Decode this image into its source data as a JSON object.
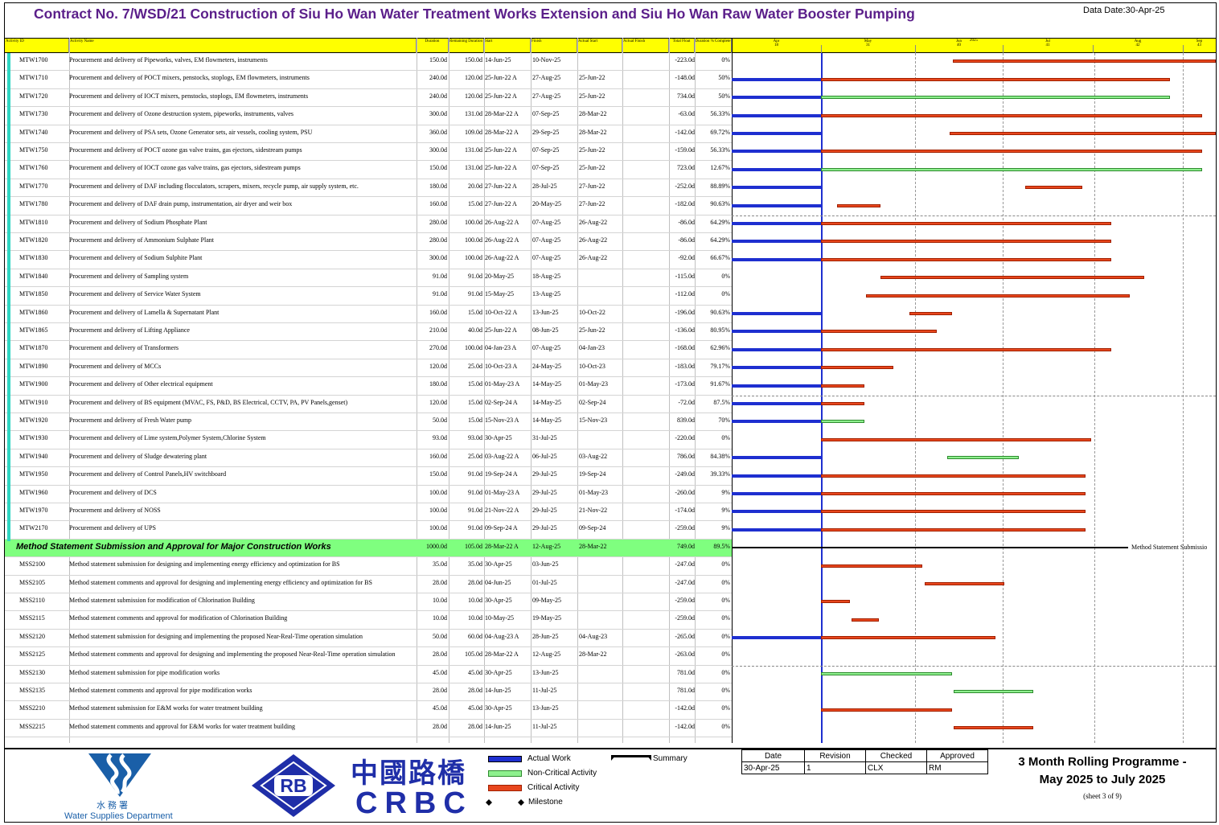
{
  "header": {
    "title": "Contract No. 7/WSD/21 Construction of Siu Ho Wan Water Treatment Works Extension and Siu Ho Wan Raw Water Booster Pumping",
    "data_date": "Data Date:30-Apr-25"
  },
  "columns": {
    "id": "Activity ID",
    "name": "Activity Name",
    "dur": "Duration",
    "rem": "Remaining Duration",
    "start": "Start",
    "finish": "Finish",
    "astart": "Actual Start",
    "afinish": "Actual Finish",
    "tf": "Total Float",
    "pct": "Duration % Complete"
  },
  "timescale": {
    "year": "2025",
    "months": [
      {
        "m": "Apr",
        "w": "18"
      },
      {
        "m": "May",
        "w": "31"
      },
      {
        "m": "Jun",
        "w": "40"
      },
      {
        "m": "Jul",
        "w": "41"
      },
      {
        "m": "Aug",
        "w": "42"
      },
      {
        "m": "Sep",
        "w": "43"
      }
    ]
  },
  "rows": [
    {
      "id": "MTW1700",
      "name": "Procurement and delivery of Pipeworks, valves, EM flowmeters, instruments",
      "dur": "150.0d",
      "rem": "150.0d",
      "start": "14-Jun-25",
      "finish": "10-Nov-25",
      "astart": "",
      "tf": "-223.0d",
      "pct": "0%",
      "act": null,
      "bar": [
        0.456,
        1.0
      ],
      "kind": "crit"
    },
    {
      "id": "MTW1710",
      "name": "Procurement and delivery of POCT mixers, penstocks, stoplogs, EM flowmeters, instruments",
      "dur": "240.0d",
      "rem": "120.0d",
      "start": "25-Jun-22 A",
      "finish": "27-Aug-25",
      "astart": "25-Jun-22",
      "tf": "-148.0d",
      "pct": "50%",
      "act": [
        0,
        0.185
      ],
      "bar": [
        0.185,
        0.906
      ],
      "kind": "crit"
    },
    {
      "id": "MTW1720",
      "name": "Procurement and delivery of IOCT mixers, penstocks, stoplogs, EM flowmeters, instruments",
      "dur": "240.0d",
      "rem": "120.0d",
      "start": "25-Jun-22 A",
      "finish": "27-Aug-25",
      "astart": "25-Jun-22",
      "tf": "734.0d",
      "pct": "50%",
      "act": [
        0,
        0.185
      ],
      "bar": [
        0.185,
        0.906
      ],
      "kind": "nc"
    },
    {
      "id": "MTW1730",
      "name": "Procurement and delivery of Ozone destruction system, pipeworks, instruments, valves",
      "dur": "300.0d",
      "rem": "131.0d",
      "start": "28-Mar-22 A",
      "finish": "07-Sep-25",
      "astart": "28-Mar-22",
      "tf": "-63.0d",
      "pct": "56.33%",
      "act": [
        0,
        0.185
      ],
      "bar": [
        0.185,
        0.973
      ],
      "kind": "crit"
    },
    {
      "id": "MTW1740",
      "name": "Procurement and delivery of PSA sets, Ozone Generator sets, air vessels, cooling system, PSU",
      "dur": "360.0d",
      "rem": "109.0d",
      "start": "28-Mar-22 A",
      "finish": "29-Sep-25",
      "astart": "28-Mar-22",
      "tf": "-142.0d",
      "pct": "69.72%",
      "act": [
        0,
        0.185
      ],
      "bar": [
        0.45,
        1.0
      ],
      "kind": "crit"
    },
    {
      "id": "MTW1750",
      "name": "Procurement and delivery of POCT ozone gas valve trains, gas ejectors, sidestream pumps",
      "dur": "300.0d",
      "rem": "131.0d",
      "start": "25-Jun-22 A",
      "finish": "07-Sep-25",
      "astart": "25-Jun-22",
      "tf": "-159.0d",
      "pct": "56.33%",
      "act": [
        0,
        0.185
      ],
      "bar": [
        0.185,
        0.973
      ],
      "kind": "crit"
    },
    {
      "id": "MTW1760",
      "name": "Procurement and delivery of IOCT ozone gas valve trains, gas ejectors, sidestream pumps",
      "dur": "150.0d",
      "rem": "131.0d",
      "start": "25-Jun-22 A",
      "finish": "07-Sep-25",
      "astart": "25-Jun-22",
      "tf": "723.0d",
      "pct": "12.67%",
      "act": [
        0,
        0.185
      ],
      "bar": [
        0.185,
        0.973
      ],
      "kind": "nc"
    },
    {
      "id": "MTW1770",
      "name": "Procurement and delivery of DAF including flocculators, scrapers, mixers, recycle pump, air supply system, etc.",
      "dur": "180.0d",
      "rem": "20.0d",
      "start": "27-Jun-22 A",
      "finish": "28-Jul-25",
      "astart": "27-Jun-22",
      "tf": "-252.0d",
      "pct": "88.89%",
      "act": [
        0,
        0.185
      ],
      "bar": [
        0.606,
        0.724
      ],
      "kind": "crit"
    },
    {
      "id": "MTW1780",
      "name": "Procurement and delivery of DAF drain pump, instrumentation, air dryer and weir box",
      "dur": "160.0d",
      "rem": "15.0d",
      "start": "27-Jun-22 A",
      "finish": "20-May-25",
      "astart": "27-Jun-22",
      "tf": "-182.0d",
      "pct": "90.63%",
      "act": [
        0,
        0.185
      ],
      "bar": [
        0.218,
        0.307
      ],
      "kind": "crit"
    },
    {
      "id": "MTW1810",
      "name": "Procurement and delivery of Sodium Phosphate Plant",
      "dur": "280.0d",
      "rem": "100.0d",
      "start": "26-Aug-22 A",
      "finish": "07-Aug-25",
      "astart": "26-Aug-22",
      "tf": "-86.0d",
      "pct": "64.29%",
      "act": [
        0,
        0.185
      ],
      "bar": [
        0.185,
        0.785
      ],
      "kind": "crit"
    },
    {
      "id": "MTW1820",
      "name": "Procurement and delivery of Ammonium Sulphate Plant",
      "dur": "280.0d",
      "rem": "100.0d",
      "start": "26-Aug-22 A",
      "finish": "07-Aug-25",
      "astart": "26-Aug-22",
      "tf": "-86.0d",
      "pct": "64.29%",
      "act": [
        0,
        0.185
      ],
      "bar": [
        0.185,
        0.785
      ],
      "kind": "crit"
    },
    {
      "id": "MTW1830",
      "name": "Procurement and delivery of Sodium Sulphite Plant",
      "dur": "300.0d",
      "rem": "100.0d",
      "start": "26-Aug-22 A",
      "finish": "07-Aug-25",
      "astart": "26-Aug-22",
      "tf": "-92.0d",
      "pct": "66.67%",
      "act": [
        0,
        0.185
      ],
      "bar": [
        0.185,
        0.785
      ],
      "kind": "crit"
    },
    {
      "id": "MTW1840",
      "name": "Procurement and delivery of Sampling system",
      "dur": "91.0d",
      "rem": "91.0d",
      "start": "20-May-25",
      "finish": "18-Aug-25",
      "astart": "",
      "tf": "-115.0d",
      "pct": "0%",
      "act": null,
      "bar": [
        0.307,
        0.852
      ],
      "kind": "crit"
    },
    {
      "id": "MTW1850",
      "name": "Procurement and delivery of Service Water System",
      "dur": "91.0d",
      "rem": "91.0d",
      "start": "15-May-25",
      "finish": "13-Aug-25",
      "astart": "",
      "tf": "-112.0d",
      "pct": "0%",
      "act": null,
      "bar": [
        0.277,
        0.822
      ],
      "kind": "crit"
    },
    {
      "id": "MTW1860",
      "name": "Procurement and delivery of Lamella & Supernatant Plant",
      "dur": "160.0d",
      "rem": "15.0d",
      "start": "10-Oct-22 A",
      "finish": "13-Jun-25",
      "astart": "10-Oct-22",
      "tf": "-196.0d",
      "pct": "90.63%",
      "act": [
        0,
        0.185
      ],
      "bar": [
        0.367,
        0.455
      ],
      "kind": "crit"
    },
    {
      "id": "MTW1865",
      "name": "Procurement and delivery of Lifting Appliance",
      "dur": "210.0d",
      "rem": "40.0d",
      "start": "25-Jun-22 A",
      "finish": "08-Jun-25",
      "astart": "25-Jun-22",
      "tf": "-136.0d",
      "pct": "80.95%",
      "act": [
        0,
        0.185
      ],
      "bar": [
        0.185,
        0.425
      ],
      "kind": "crit"
    },
    {
      "id": "MTW1870",
      "name": "Procurement and delivery of Transformers",
      "dur": "270.0d",
      "rem": "100.0d",
      "start": "04-Jan-23 A",
      "finish": "07-Aug-25",
      "astart": "04-Jan-23",
      "tf": "-168.0d",
      "pct": "62.96%",
      "act": [
        0,
        0.185
      ],
      "bar": [
        0.185,
        0.785
      ],
      "kind": "crit"
    },
    {
      "id": "MTW1890",
      "name": "Procurement and delivery of MCCs",
      "dur": "120.0d",
      "rem": "25.0d",
      "start": "10-Oct-23 A",
      "finish": "24-May-25",
      "astart": "10-Oct-23",
      "tf": "-183.0d",
      "pct": "79.17%",
      "act": [
        0,
        0.185
      ],
      "bar": [
        0.185,
        0.334
      ],
      "kind": "crit"
    },
    {
      "id": "MTW1900",
      "name": "Procurement and delivery of Other electrical equipment",
      "dur": "180.0d",
      "rem": "15.0d",
      "start": "01-May-23 A",
      "finish": "14-May-25",
      "astart": "01-May-23",
      "tf": "-173.0d",
      "pct": "91.67%",
      "act": [
        0,
        0.185
      ],
      "bar": [
        0.185,
        0.274
      ],
      "kind": "crit"
    },
    {
      "id": "MTW1910",
      "name": "Procurement and delivery of BS equipment (MVAC, FS, P&D, BS Electrical, CCTV, PA, PV Panels,genset)",
      "dur": "120.0d",
      "rem": "15.0d",
      "start": "02-Sep-24 A",
      "finish": "14-May-25",
      "astart": "02-Sep-24",
      "tf": "-72.0d",
      "pct": "87.5%",
      "act": [
        0,
        0.185
      ],
      "bar": [
        0.185,
        0.274
      ],
      "kind": "crit"
    },
    {
      "id": "MTW1920",
      "name": "Procurement and delivery of Fresh Water pump",
      "dur": "50.0d",
      "rem": "15.0d",
      "start": "15-Nov-23 A",
      "finish": "14-May-25",
      "astart": "15-Nov-23",
      "tf": "839.0d",
      "pct": "70%",
      "act": [
        0,
        0.185
      ],
      "bar": [
        0.185,
        0.274
      ],
      "kind": "nc"
    },
    {
      "id": "MTW1930",
      "name": "Procurement and delivery of Lime system,Polymer System,Chlorine System",
      "dur": "93.0d",
      "rem": "93.0d",
      "start": "30-Apr-25",
      "finish": "31-Jul-25",
      "astart": "",
      "tf": "-220.0d",
      "pct": "0%",
      "act": null,
      "bar": [
        0.185,
        0.743
      ],
      "kind": "crit"
    },
    {
      "id": "MTW1940",
      "name": "Procurement and delivery of Sludge dewatering plant",
      "dur": "160.0d",
      "rem": "25.0d",
      "start": "03-Aug-22 A",
      "finish": "06-Jul-25",
      "astart": "03-Aug-22",
      "tf": "786.0d",
      "pct": "84.38%",
      "act": [
        0,
        0.185
      ],
      "bar": [
        0.445,
        0.593
      ],
      "kind": "nc"
    },
    {
      "id": "MTW1950",
      "name": "Procurement and delivery of Control Panels,HV switchboard",
      "dur": "150.0d",
      "rem": "91.0d",
      "start": "19-Sep-24 A",
      "finish": "29-Jul-25",
      "astart": "19-Sep-24",
      "tf": "-249.0d",
      "pct": "39.33%",
      "act": [
        0,
        0.185
      ],
      "bar": [
        0.185,
        0.731
      ],
      "kind": "crit"
    },
    {
      "id": "MTW1960",
      "name": "Procurement and delivery of DCS",
      "dur": "100.0d",
      "rem": "91.0d",
      "start": "01-May-23 A",
      "finish": "29-Jul-25",
      "astart": "01-May-23",
      "tf": "-260.0d",
      "pct": "9%",
      "act": [
        0,
        0.185
      ],
      "bar": [
        0.185,
        0.731
      ],
      "kind": "crit"
    },
    {
      "id": "MTW1970",
      "name": "Procurement and delivery of NOSS",
      "dur": "100.0d",
      "rem": "91.0d",
      "start": "21-Nov-22 A",
      "finish": "29-Jul-25",
      "astart": "21-Nov-22",
      "tf": "-174.0d",
      "pct": "9%",
      "act": [
        0,
        0.185
      ],
      "bar": [
        0.185,
        0.731
      ],
      "kind": "crit"
    },
    {
      "id": "MTW2170",
      "name": "Procurement and delivery of UPS",
      "dur": "100.0d",
      "rem": "91.0d",
      "start": "09-Sep-24 A",
      "finish": "29-Jul-25",
      "astart": "09-Sep-24",
      "tf": "-259.0d",
      "pct": "9%",
      "act": [
        0,
        0.185
      ],
      "bar": [
        0.185,
        0.731
      ],
      "kind": "crit"
    },
    {
      "group": true,
      "name": "Method Statement Submission and Approval for Major Construction Works",
      "dur": "1000.0d",
      "rem": "105.0d",
      "start": "28-Mar-22 A",
      "finish": "12-Aug-25",
      "astart": "28-Mar-22",
      "tf": "749.0d",
      "pct": "89.5%",
      "sum": [
        0,
        0.819
      ],
      "sum_label": "Method Statement Submissio"
    },
    {
      "id": "MSS2100",
      "name": "Method statement submission for designing and implementing energy efficiency and optimization for BS",
      "dur": "35.0d",
      "rem": "35.0d",
      "start": "30-Apr-25",
      "finish": "03-Jun-25",
      "astart": "",
      "tf": "-247.0d",
      "pct": "0%",
      "act": null,
      "bar": [
        0.185,
        0.395
      ],
      "kind": "crit"
    },
    {
      "id": "MSS2105",
      "name": "Method statement comments and approval for designing and implementing energy efficiency and optimization for BS",
      "dur": "28.0d",
      "rem": "28.0d",
      "start": "04-Jun-25",
      "finish": "01-Jul-25",
      "astart": "",
      "tf": "-247.0d",
      "pct": "0%",
      "act": null,
      "bar": [
        0.398,
        0.563
      ],
      "kind": "crit"
    },
    {
      "id": "MSS2110",
      "name": "Method statement submission for modification of Chlorination Building",
      "dur": "10.0d",
      "rem": "10.0d",
      "start": "30-Apr-25",
      "finish": "09-May-25",
      "astart": "",
      "tf": "-259.0d",
      "pct": "0%",
      "act": null,
      "bar": [
        0.185,
        0.244
      ],
      "kind": "crit"
    },
    {
      "id": "MSS2115",
      "name": "Method statement  comments and approval for modification of Chlorination Building",
      "dur": "10.0d",
      "rem": "10.0d",
      "start": "10-May-25",
      "finish": "19-May-25",
      "astart": "",
      "tf": "-259.0d",
      "pct": "0%",
      "act": null,
      "bar": [
        0.247,
        0.304
      ],
      "kind": "crit"
    },
    {
      "id": "MSS2120",
      "name": "Method statement submission for designing and implementing the proposed Near-Real-Time operation simulation",
      "dur": "50.0d",
      "rem": "60.0d",
      "start": "04-Aug-23 A",
      "finish": "28-Jun-25",
      "astart": "04-Aug-23",
      "tf": "-265.0d",
      "pct": "0%",
      "act": [
        0,
        0.185
      ],
      "bar": [
        0.185,
        0.545
      ],
      "kind": "crit"
    },
    {
      "id": "MSS2125",
      "name": "Method statement comments and approval for designing and implementing the proposed Near-Real-Time operation simulation",
      "dur": "28.0d",
      "rem": "105.0d",
      "start": "28-Mar-22 A",
      "finish": "12-Aug-25",
      "astart": "28-Mar-22",
      "tf": "-263.0d",
      "pct": "0%",
      "act": null,
      "bar": null,
      "kind": "crit"
    },
    {
      "id": "MSS2130",
      "name": "Method statement submission for pipe modification works",
      "dur": "45.0d",
      "rem": "45.0d",
      "start": "30-Apr-25",
      "finish": "13-Jun-25",
      "astart": "",
      "tf": "781.0d",
      "pct": "0%",
      "act": null,
      "bar": [
        0.185,
        0.455
      ],
      "kind": "nc"
    },
    {
      "id": "MSS2135",
      "name": "Method statement comments and approval for pipe modification works",
      "dur": "28.0d",
      "rem": "28.0d",
      "start": "14-Jun-25",
      "finish": "11-Jul-25",
      "astart": "",
      "tf": "781.0d",
      "pct": "0%",
      "act": null,
      "bar": [
        0.458,
        0.623
      ],
      "kind": "nc"
    },
    {
      "id": "MSS2210",
      "name": "Method statement submission for E&M works for water treatment building",
      "dur": "45.0d",
      "rem": "45.0d",
      "start": "30-Apr-25",
      "finish": "13-Jun-25",
      "astart": "",
      "tf": "-142.0d",
      "pct": "0%",
      "act": null,
      "bar": [
        0.185,
        0.455
      ],
      "kind": "crit"
    },
    {
      "id": "MSS2215",
      "name": "Method statement comments and approval for E&M works for water treatment building",
      "dur": "28.0d",
      "rem": "28.0d",
      "start": "14-Jun-25",
      "finish": "11-Jul-25",
      "astart": "",
      "tf": "-142.0d",
      "pct": "0%",
      "act": null,
      "bar": [
        0.458,
        0.623
      ],
      "kind": "crit"
    }
  ],
  "legend": {
    "actual": "Actual Work",
    "noncrit": "Non-Critical Activity",
    "crit": "Critical Activity",
    "milestone": "Milestone",
    "summary": "Summary"
  },
  "logos": {
    "wsd_cn": "水務署",
    "wsd_en": "Water Supplies Department",
    "rb": "RB",
    "crbc_cn": "中國路橋",
    "crbc_en": "CRBC"
  },
  "revision": {
    "headers": [
      "Date",
      "Revision",
      "Checked",
      "Approved"
    ],
    "values": [
      "30-Apr-25",
      "1",
      "CLX",
      "RM"
    ]
  },
  "programme": {
    "title_line1": "3 Month Rolling Programme -",
    "title_line2": "May 2025 to July 2025",
    "sheet": "(sheet 3 of 9)"
  },
  "colors": {
    "critical": "#e8461d",
    "noncritical": "#8ef08e",
    "actual": "#1e2fd0",
    "header_band": "#ffff00",
    "group_band": "#7fff7f",
    "title": "#5b1f8a"
  }
}
